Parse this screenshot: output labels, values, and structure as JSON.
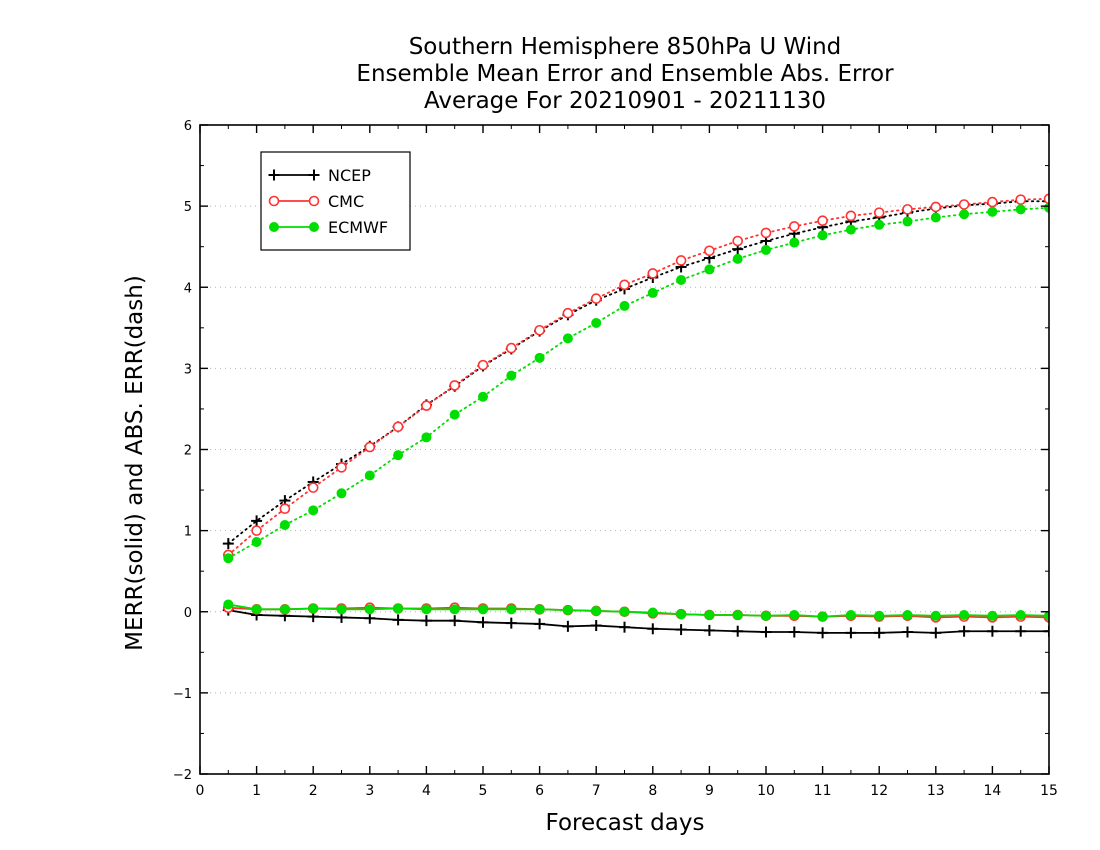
{
  "chart_data": {
    "type": "line",
    "title_lines": [
      "Southern Hemisphere 850hPa U Wind",
      "Ensemble Mean Error and Ensemble Abs. Error",
      "Average For 20210901 - 20211130"
    ],
    "xlabel": "Forecast days",
    "ylabel": "MERR(solid) and ABS. ERR(dash)",
    "xlim": [
      0,
      15
    ],
    "ylim": [
      -2,
      6
    ],
    "xticks": [
      "0",
      "1",
      "2",
      "3",
      "4",
      "5",
      "6",
      "7",
      "8",
      "9",
      "10",
      "11",
      "12",
      "13",
      "14",
      "15"
    ],
    "yticks": [
      "−2",
      "−1",
      "0",
      "1",
      "2",
      "3",
      "4",
      "5",
      "6"
    ],
    "grid": "horizontal-dotted",
    "legend_position": "top-left",
    "x": [
      0.5,
      1,
      1.5,
      2,
      2.5,
      3,
      3.5,
      4,
      4.5,
      5,
      5.5,
      6,
      6.5,
      7,
      7.5,
      8,
      8.5,
      9,
      9.5,
      10,
      10.5,
      11,
      11.5,
      12,
      12.5,
      13,
      13.5,
      14,
      14.5,
      15
    ],
    "series": [
      {
        "name": "NCEP",
        "color": "#000000",
        "marker": "plus",
        "mean_error": [
          0.02,
          -0.04,
          -0.05,
          -0.06,
          -0.07,
          -0.08,
          -0.1,
          -0.11,
          -0.11,
          -0.13,
          -0.14,
          -0.15,
          -0.18,
          -0.17,
          -0.19,
          -0.21,
          -0.22,
          -0.23,
          -0.24,
          -0.25,
          -0.25,
          -0.26,
          -0.26,
          -0.26,
          -0.25,
          -0.26,
          -0.24,
          -0.24,
          -0.24,
          -0.24
        ],
        "abs_error": [
          0.84,
          1.12,
          1.37,
          1.6,
          1.82,
          2.04,
          2.28,
          2.55,
          2.78,
          3.03,
          3.24,
          3.46,
          3.66,
          3.84,
          3.98,
          4.12,
          4.25,
          4.36,
          4.47,
          4.57,
          4.66,
          4.74,
          4.81,
          4.86,
          4.92,
          4.97,
          5.01,
          5.03,
          5.06,
          5.06
        ]
      },
      {
        "name": "CMC",
        "color": "#ff3333",
        "marker": "open-circle",
        "mean_error": [
          0.05,
          0.03,
          0.03,
          0.04,
          0.04,
          0.05,
          0.04,
          0.04,
          0.05,
          0.04,
          0.04,
          0.03,
          0.02,
          0.01,
          0.0,
          -0.02,
          -0.03,
          -0.04,
          -0.04,
          -0.05,
          -0.05,
          -0.06,
          -0.05,
          -0.06,
          -0.05,
          -0.07,
          -0.06,
          -0.07,
          -0.06,
          -0.07
        ],
        "abs_error": [
          0.7,
          1.0,
          1.27,
          1.53,
          1.78,
          2.03,
          2.28,
          2.54,
          2.79,
          3.04,
          3.25,
          3.47,
          3.68,
          3.86,
          4.03,
          4.17,
          4.33,
          4.45,
          4.57,
          4.67,
          4.75,
          4.82,
          4.88,
          4.92,
          4.96,
          4.99,
          5.02,
          5.05,
          5.08,
          5.09
        ]
      },
      {
        "name": "ECMWF",
        "color": "#00dd00",
        "marker": "filled-circle",
        "mean_error": [
          0.09,
          0.03,
          0.03,
          0.04,
          0.03,
          0.03,
          0.04,
          0.03,
          0.03,
          0.03,
          0.03,
          0.03,
          0.02,
          0.01,
          0.0,
          -0.01,
          -0.03,
          -0.04,
          -0.04,
          -0.05,
          -0.04,
          -0.06,
          -0.04,
          -0.05,
          -0.04,
          -0.05,
          -0.04,
          -0.05,
          -0.04,
          -0.05
        ],
        "abs_error": [
          0.66,
          0.86,
          1.07,
          1.25,
          1.46,
          1.68,
          1.93,
          2.15,
          2.43,
          2.65,
          2.91,
          3.13,
          3.37,
          3.56,
          3.77,
          3.93,
          4.09,
          4.22,
          4.35,
          4.46,
          4.55,
          4.64,
          4.71,
          4.77,
          4.81,
          4.86,
          4.9,
          4.93,
          4.96,
          4.98
        ]
      }
    ]
  }
}
